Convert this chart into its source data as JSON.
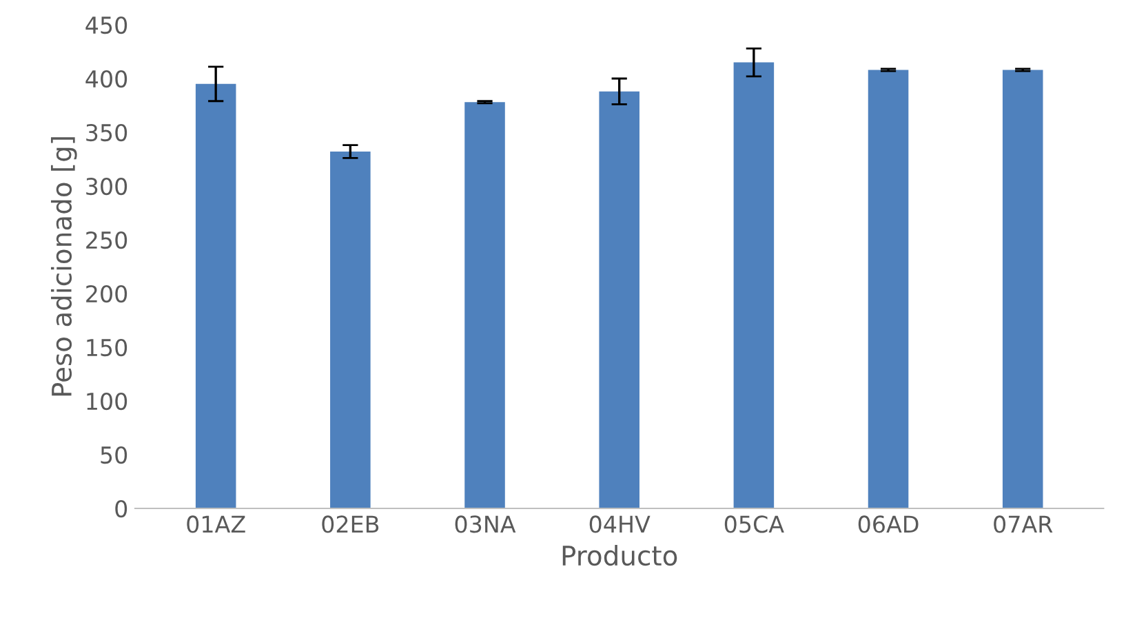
{
  "chart_data": {
    "type": "bar",
    "xlabel": "Producto",
    "ylabel": "Peso adicionado [g]",
    "categories": [
      "01AZ",
      "02EB",
      "03NA",
      "04HV",
      "05CA",
      "06AD",
      "07AR"
    ],
    "values": [
      395,
      332,
      378,
      388,
      415,
      408,
      408
    ],
    "errors": [
      16,
      6,
      1,
      12,
      13,
      1,
      1
    ],
    "color": "#4f81bd",
    "ylim": [
      0,
      450
    ],
    "yticks": [
      0,
      50,
      100,
      150,
      200,
      250,
      300,
      350,
      400,
      450
    ],
    "grid": false,
    "legend": false
  }
}
